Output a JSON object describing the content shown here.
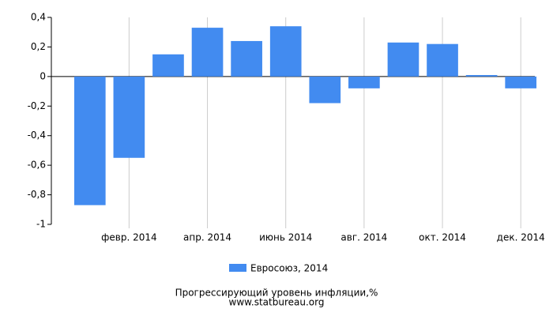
{
  "chart_data": {
    "type": "bar",
    "title": "Прогрессирующий уровень инфляции,%",
    "subtitle": "www.statbureau.org",
    "categories": [
      null,
      "февр. 2014",
      null,
      "апр. 2014",
      null,
      "июнь 2014",
      null,
      "авг. 2014",
      null,
      "окт. 2014",
      null,
      "дек. 2014"
    ],
    "series": [
      {
        "name": "Евросоюз, 2014",
        "color": "#428bf0",
        "values": [
          -0.87,
          -0.55,
          0.15,
          0.33,
          0.24,
          0.34,
          -0.18,
          -0.08,
          0.23,
          0.22,
          0.01,
          -0.08
        ]
      }
    ],
    "ylim": [
      -1,
      0.4
    ],
    "yticks": [
      -1,
      {
        "value": -0.8,
        "label": "-0,8"
      },
      {
        "value": -0.6,
        "label": "-0,6"
      },
      {
        "value": -0.4,
        "label": "-0,4"
      },
      {
        "value": -0.2,
        "label": "-0,2"
      },
      0,
      {
        "value": 0.2,
        "label": "0,2"
      },
      {
        "value": 0.4,
        "label": "0,4"
      }
    ],
    "grid": "x"
  }
}
